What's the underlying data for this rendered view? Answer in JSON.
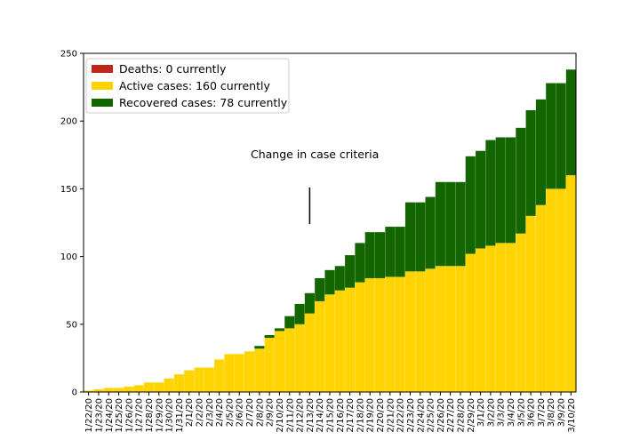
{
  "chart_data": {
    "type": "bar",
    "stacked": true,
    "categories": [
      "1/22/20",
      "1/23/20",
      "1/24/20",
      "1/25/20",
      "1/26/20",
      "1/27/20",
      "1/28/20",
      "1/29/20",
      "1/30/20",
      "1/31/20",
      "2/1/20",
      "2/2/20",
      "2/3/20",
      "2/4/20",
      "2/5/20",
      "2/6/20",
      "2/7/20",
      "2/8/20",
      "2/9/20",
      "2/10/20",
      "2/11/20",
      "2/12/20",
      "2/13/20",
      "2/14/20",
      "2/15/20",
      "2/16/20",
      "2/17/20",
      "2/18/20",
      "2/19/20",
      "2/20/20",
      "2/21/20",
      "2/22/20",
      "2/23/20",
      "2/24/20",
      "2/25/20",
      "2/26/20",
      "2/27/20",
      "2/28/20",
      "2/29/20",
      "3/1/20",
      "3/2/20",
      "3/3/20",
      "3/4/20",
      "3/5/20",
      "3/6/20",
      "3/7/20",
      "3/8/20",
      "3/9/20",
      "3/10/20"
    ],
    "series": [
      {
        "name": "Deaths: 0 currently",
        "color": "#c0261a",
        "values": [
          0,
          0,
          0,
          0,
          0,
          0,
          0,
          0,
          0,
          0,
          0,
          0,
          0,
          0,
          0,
          0,
          0,
          0,
          0,
          0,
          0,
          0,
          0,
          0,
          0,
          0,
          0,
          0,
          0,
          0,
          0,
          0,
          0,
          0,
          0,
          0,
          0,
          0,
          0,
          0,
          0,
          0,
          0,
          0,
          0,
          0,
          0,
          0,
          0
        ]
      },
      {
        "name": "Active cases: 160 currently",
        "color": "#ffd400",
        "values": [
          1,
          2,
          3,
          3,
          4,
          5,
          7,
          7,
          10,
          13,
          16,
          18,
          18,
          24,
          28,
          28,
          30,
          32,
          40,
          45,
          47,
          50,
          58,
          67,
          72,
          75,
          77,
          81,
          84,
          84,
          85,
          85,
          89,
          89,
          91,
          93,
          93,
          93,
          102,
          106,
          108,
          110,
          110,
          117,
          130,
          138,
          150,
          150,
          160
        ]
      },
      {
        "name": "Recovered cases: 78 currently",
        "color": "#136500",
        "values": [
          0,
          0,
          0,
          0,
          0,
          0,
          0,
          0,
          0,
          0,
          0,
          0,
          0,
          0,
          0,
          0,
          0,
          2,
          2,
          2,
          9,
          15,
          15,
          17,
          18,
          18,
          24,
          29,
          34,
          34,
          37,
          37,
          51,
          51,
          53,
          62,
          62,
          62,
          72,
          72,
          78,
          78,
          78,
          78,
          78,
          78,
          78,
          78,
          78
        ]
      }
    ],
    "ylim": [
      0,
      250
    ],
    "yticks": [
      0,
      50,
      100,
      150,
      200,
      250
    ],
    "xlabel": "",
    "ylabel": "",
    "title": "",
    "legend_position": "top-left",
    "grid": false,
    "annotation": {
      "text": "Change in case criteria",
      "x": "2/13/20",
      "line_y": [
        124,
        151
      ]
    }
  }
}
